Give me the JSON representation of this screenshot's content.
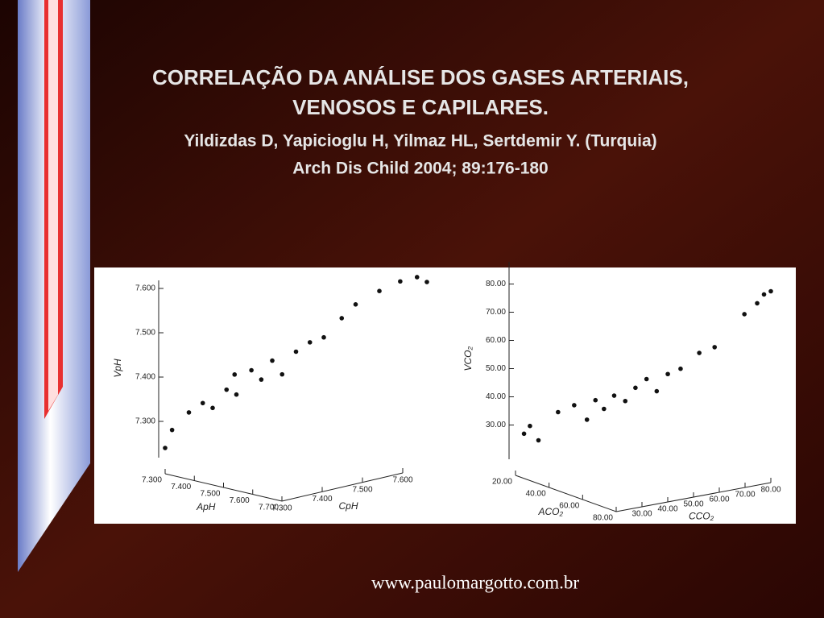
{
  "slide": {
    "title_line1": "CORRELAÇÃO DA ANÁLISE DOS GASES ARTERIAIS,",
    "title_line2": "VENOSOS E CAPILARES.",
    "authors": "Yildizdas D, Yapicioglu H, Yilmaz HL, Sertdemir Y. (Turquia)",
    "citation": "Arch Dis Child 2004; 89:176-180",
    "website": "www.paulomargotto.com.br"
  },
  "chart_data": [
    {
      "type": "scatter3d",
      "xlabel": "ApH",
      "ylabel": "CpH",
      "zlabel": "VpH",
      "color": "#111111",
      "xlim": [
        7.3,
        7.7
      ],
      "ylim": [
        7.3,
        7.6
      ],
      "zlim": [
        7.2,
        7.6
      ],
      "xticks": [
        {
          "value": 7.3,
          "label": "7.300"
        },
        {
          "value": 7.4,
          "label": "7.400"
        },
        {
          "value": 7.5,
          "label": "7.500"
        },
        {
          "value": 7.6,
          "label": "7.600"
        },
        {
          "value": 7.7,
          "label": "7.700"
        }
      ],
      "yticks": [
        {
          "value": 7.3,
          "label": "7.300"
        },
        {
          "value": 7.4,
          "label": "7.400"
        },
        {
          "value": 7.5,
          "label": "7.500"
        },
        {
          "value": 7.6,
          "label": "7.600"
        }
      ],
      "zticks": [
        {
          "value": 7.3,
          "label": "7.300"
        },
        {
          "value": 7.4,
          "label": "7.400"
        },
        {
          "value": 7.5,
          "label": "7.500"
        },
        {
          "value": 7.6,
          "label": "7.600"
        }
      ],
      "x": [
        7.3,
        7.31,
        7.34,
        7.36,
        7.38,
        7.4,
        7.4,
        7.42,
        7.43,
        7.45,
        7.46,
        7.48,
        7.5,
        7.52,
        7.54,
        7.56,
        7.58,
        7.62,
        7.65,
        7.68,
        7.7
      ],
      "y": [
        7.3,
        7.31,
        7.33,
        7.35,
        7.36,
        7.38,
        7.4,
        7.39,
        7.42,
        7.43,
        7.45,
        7.46,
        7.48,
        7.5,
        7.52,
        7.55,
        7.57,
        7.6,
        7.63,
        7.65,
        7.66
      ],
      "z": [
        7.24,
        7.28,
        7.32,
        7.34,
        7.33,
        7.37,
        7.4,
        7.36,
        7.41,
        7.39,
        7.43,
        7.4,
        7.45,
        7.47,
        7.48,
        7.52,
        7.55,
        7.58,
        7.6,
        7.61,
        7.6
      ]
    },
    {
      "type": "scatter3d",
      "xlabel": "ACO₂",
      "ylabel": "CCO₂",
      "zlabel": "VCO₂",
      "color": "#111111",
      "xlim": [
        20,
        80
      ],
      "ylim": [
        20,
        80
      ],
      "zlim": [
        15,
        85
      ],
      "xticks": [
        {
          "value": 20,
          "label": "20.00"
        },
        {
          "value": 40,
          "label": "40.00"
        },
        {
          "value": 60,
          "label": "60.00"
        },
        {
          "value": 80,
          "label": "80.00"
        }
      ],
      "yticks": [
        {
          "value": 30,
          "label": "30.00"
        },
        {
          "value": 40,
          "label": "40.00"
        },
        {
          "value": 50,
          "label": "50.00"
        },
        {
          "value": 60,
          "label": "60.00"
        },
        {
          "value": 70,
          "label": "70.00"
        },
        {
          "value": 80,
          "label": "80.00"
        }
      ],
      "zticks": [
        {
          "value": 30,
          "label": "30.00"
        },
        {
          "value": 40,
          "label": "40.00"
        },
        {
          "value": 50,
          "label": "50.00"
        },
        {
          "value": 60,
          "label": "60.00"
        },
        {
          "value": 70,
          "label": "70.00"
        },
        {
          "value": 80,
          "label": "80.00"
        }
      ],
      "x": [
        22,
        24,
        26,
        30,
        35,
        38,
        40,
        42,
        45,
        47,
        50,
        52,
        55,
        57,
        60,
        65,
        68,
        75,
        78,
        80,
        79
      ],
      "y": [
        22,
        23,
        25,
        30,
        33,
        36,
        38,
        40,
        42,
        45,
        47,
        50,
        52,
        55,
        58,
        62,
        66,
        73,
        76,
        80,
        78
      ],
      "z": [
        27,
        30,
        25,
        35,
        38,
        33,
        40,
        37,
        42,
        40,
        45,
        48,
        44,
        50,
        52,
        58,
        60,
        72,
        76,
        80,
        79
      ]
    }
  ]
}
